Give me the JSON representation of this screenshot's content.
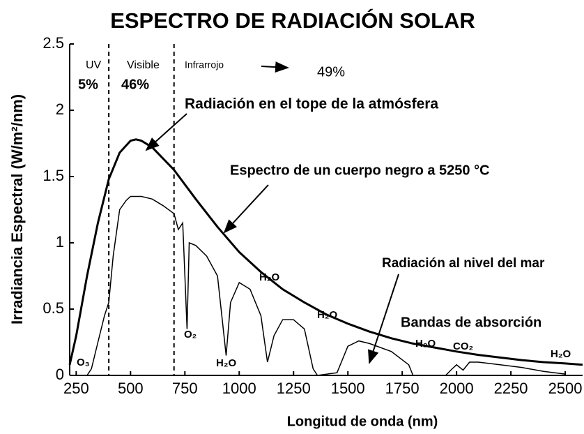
{
  "chart_data": {
    "type": "line",
    "title": "ESPECTRO DE RADIACIÓN SOLAR",
    "x_label": "Longitud de onda (nm)",
    "y_label": "Irradiancia Espectral  (W/m²/nm)",
    "xlim": [
      220,
      2580
    ],
    "ylim": [
      0,
      2.5
    ],
    "xticks": [
      250,
      500,
      750,
      1000,
      1250,
      1500,
      1750,
      2000,
      2250,
      2500
    ],
    "yticks": [
      0,
      0.5,
      1,
      1.5,
      2,
      2.5
    ],
    "dividers": [
      400,
      700
    ],
    "series": [
      {
        "color": "#000000",
        "x": [
          220,
          250,
          300,
          350,
          400,
          450,
          500,
          525,
          550,
          600,
          700,
          800,
          900,
          1000,
          1100,
          1200,
          1300,
          1400,
          1500,
          1600,
          1700,
          1800,
          1900,
          2000,
          2100,
          2200,
          2300,
          2400,
          2500,
          2580
        ],
        "values": [
          0.08,
          0.3,
          0.75,
          1.15,
          1.48,
          1.68,
          1.77,
          1.78,
          1.77,
          1.72,
          1.55,
          1.33,
          1.12,
          0.93,
          0.78,
          0.65,
          0.55,
          0.46,
          0.39,
          0.33,
          0.28,
          0.24,
          0.21,
          0.18,
          0.155,
          0.135,
          0.115,
          0.1,
          0.09,
          0.08
        ]
      },
      {
        "color": "#000000",
        "x": [
          300,
          320,
          350,
          380,
          400,
          420,
          450,
          480,
          500,
          550,
          600,
          650,
          700,
          720,
          740,
          760,
          770,
          800,
          850,
          900,
          920,
          940,
          960,
          1000,
          1050,
          1100,
          1130,
          1160,
          1200,
          1250,
          1300,
          1340,
          1360,
          1450,
          1500,
          1550,
          1600,
          1700,
          1780,
          1800,
          1950,
          1980,
          2000,
          2030,
          2060,
          2100,
          2200,
          2300,
          2400,
          2500
        ],
        "values": [
          0,
          0.05,
          0.25,
          0.45,
          0.55,
          0.9,
          1.25,
          1.32,
          1.35,
          1.35,
          1.33,
          1.28,
          1.22,
          1.1,
          1.15,
          0.35,
          1.0,
          0.98,
          0.9,
          0.75,
          0.45,
          0.15,
          0.55,
          0.7,
          0.65,
          0.45,
          0.1,
          0.3,
          0.42,
          0.42,
          0.35,
          0.05,
          0,
          0.02,
          0.22,
          0.26,
          0.24,
          0.18,
          0.08,
          0,
          0,
          0.05,
          0.08,
          0.04,
          0.1,
          0.1,
          0.08,
          0.06,
          0.03,
          0.01
        ]
      }
    ],
    "annotations": [
      "Radiación en el tope de la atmósfera",
      "Espectro de un cuerpo negro a 5250 °C",
      "Radiación al nivel del mar",
      "Bandas de absorción",
      "O₃",
      "O₂",
      "H₂O",
      "H₂O",
      "H₂O",
      "H₂O",
      "CO₂",
      "H₂O",
      "UV",
      "5%",
      "Visible",
      "46%",
      "Infrarrojo",
      "49%"
    ]
  }
}
